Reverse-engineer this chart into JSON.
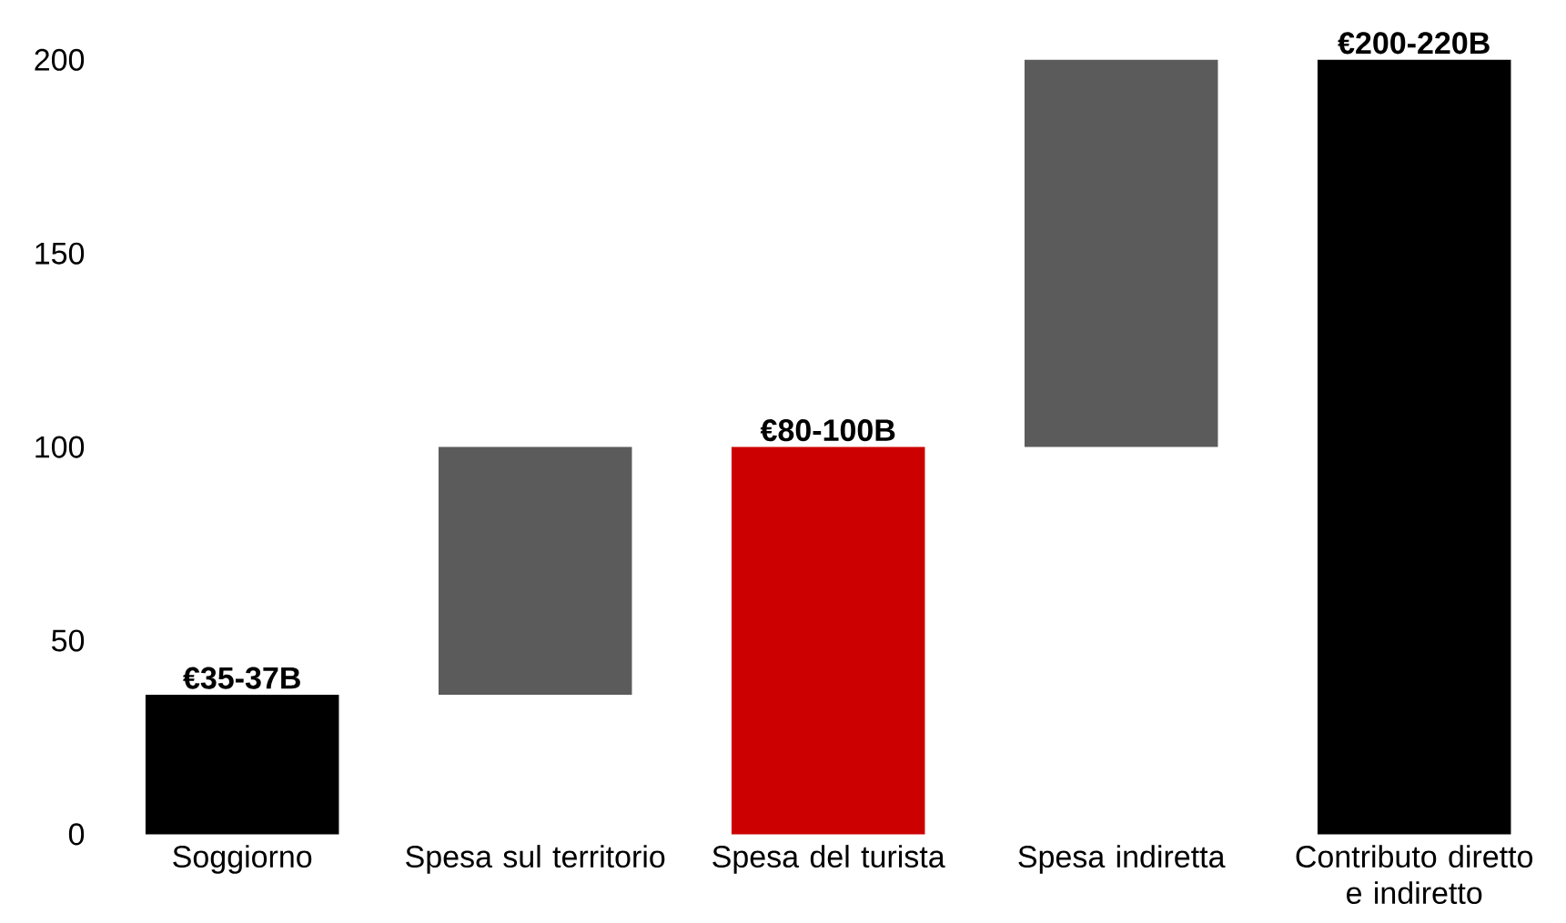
{
  "chart_data": {
    "type": "bar",
    "categories": [
      "Soggiorno",
      "Spesa sul territorio",
      "Spesa del turista",
      "Spesa indiretta",
      "Contributo diretto e indiretto"
    ],
    "values": [
      36,
      64,
      100,
      100,
      200
    ],
    "base": [
      0,
      36,
      0,
      100,
      0
    ],
    "colors": [
      "#000000",
      "#5b5b5b",
      "#cc0000",
      "#5b5b5b",
      "#000000"
    ],
    "ylim": [
      0,
      200
    ],
    "yticks": [
      0,
      50,
      100,
      150,
      200
    ],
    "grid": false,
    "annotations": [
      {
        "text": "€35-37B",
        "x": "Soggiorno",
        "y": 36
      },
      {
        "text": "€80-100B",
        "x": "Spesa del turista",
        "y": 100
      },
      {
        "text": "€200-220B",
        "x": "Contributo diretto e indiretto",
        "y": 200
      }
    ]
  }
}
